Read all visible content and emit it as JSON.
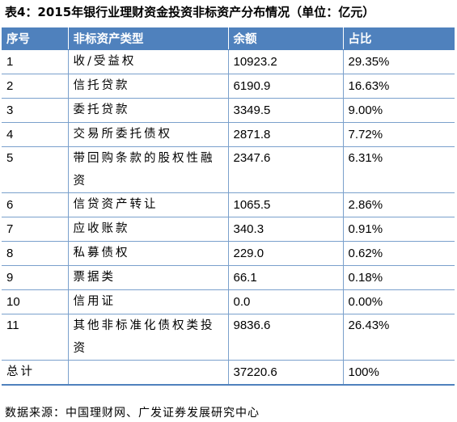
{
  "title": "表4：2015年银行业理财资金投资非标资产分布情况（单位：亿元）",
  "headers": [
    "序号",
    "非标资产类型",
    "余额",
    "占比"
  ],
  "rows": [
    {
      "no": "1",
      "type": "收/受益权",
      "balance": "10923.2",
      "share": "29.35%"
    },
    {
      "no": "2",
      "type": "信托贷款",
      "balance": "6190.9",
      "share": "16.63%"
    },
    {
      "no": "3",
      "type": "委托贷款",
      "balance": "3349.5",
      "share": "9.00%"
    },
    {
      "no": "4",
      "type": "交易所委托债权",
      "balance": "2871.8",
      "share": "7.72%"
    },
    {
      "no": "5",
      "type": "带回购条款的股权性融资",
      "balance": "2347.6",
      "share": "6.31%"
    },
    {
      "no": "6",
      "type": "信贷资产转让",
      "balance": "1065.5",
      "share": "2.86%"
    },
    {
      "no": "7",
      "type": "应收账款",
      "balance": "340.3",
      "share": "0.91%"
    },
    {
      "no": "8",
      "type": "私募债权",
      "balance": "229.0",
      "share": "0.62%"
    },
    {
      "no": "9",
      "type": "票据类",
      "balance": "66.1",
      "share": "0.18%"
    },
    {
      "no": "10",
      "type": "信用证",
      "balance": "0.0",
      "share": "0.00%"
    },
    {
      "no": "11",
      "type": "其他非标准化债权类投资",
      "balance": "9836.6",
      "share": "26.43%"
    }
  ],
  "total": {
    "label": "总计",
    "type": "",
    "balance": "37220.6",
    "share": "100%"
  },
  "source": "数据来源：中国理财网、广发证券发展研究中心"
}
